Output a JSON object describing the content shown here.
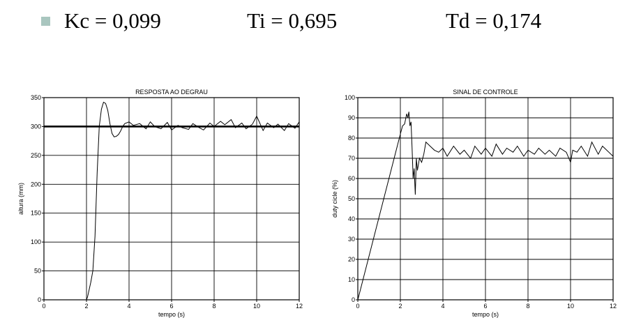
{
  "params": {
    "bullet_color": "#a9c6bf",
    "kc": "Kc = 0,099",
    "ti": "Ti = 0,695",
    "td": "Td = 0,174"
  },
  "chart_data": [
    {
      "type": "line",
      "title": "RESPOSTA AO DEGRAU",
      "xlabel": "tempo (s)",
      "ylabel": "altura (mm)",
      "xlim": [
        0,
        12
      ],
      "ylim": [
        0,
        350
      ],
      "xticks": [
        0,
        2,
        4,
        6,
        8,
        10,
        12
      ],
      "yticks": [
        0,
        50,
        100,
        150,
        200,
        250,
        300,
        350
      ],
      "grid": true,
      "reference": {
        "y": 300
      },
      "series": [
        {
          "x": [
            0,
            2.0,
            2.05,
            2.2,
            2.3,
            2.4,
            2.5,
            2.6,
            2.7,
            2.8,
            2.9,
            3.0,
            3.1,
            3.2,
            3.3,
            3.4,
            3.5,
            3.6,
            3.7,
            3.8,
            4.0,
            4.2,
            4.5,
            4.8,
            5.0,
            5.2,
            5.5,
            5.8,
            6.0,
            6.3,
            6.5,
            6.8,
            7.0,
            7.3,
            7.5,
            7.8,
            8.0,
            8.3,
            8.5,
            8.8,
            9.0,
            9.3,
            9.5,
            9.8,
            10.0,
            10.3,
            10.5,
            10.8,
            11.0,
            11.3,
            11.5,
            11.8,
            12.0
          ],
          "y": [
            0,
            0,
            5,
            30,
            50,
            110,
            220,
            300,
            330,
            342,
            340,
            328,
            305,
            288,
            282,
            283,
            286,
            292,
            300,
            305,
            308,
            302,
            305,
            296,
            308,
            300,
            296,
            307,
            294,
            302,
            298,
            295,
            305,
            298,
            294,
            306,
            300,
            309,
            303,
            312,
            298,
            306,
            296,
            304,
            318,
            293,
            306,
            298,
            304,
            293,
            305,
            297,
            308
          ]
        }
      ]
    },
    {
      "type": "line",
      "title": "SINAL DE CONTROLE",
      "xlabel": "tempo (s)",
      "ylabel": "duty cicle (%)",
      "xlim": [
        0,
        12
      ],
      "ylim": [
        0,
        100
      ],
      "xticks": [
        0,
        2,
        4,
        6,
        8,
        10,
        12
      ],
      "yticks": [
        0,
        10,
        20,
        30,
        40,
        50,
        60,
        70,
        80,
        90,
        100
      ],
      "grid": true,
      "series": [
        {
          "x": [
            0,
            2.0,
            2.1,
            2.2,
            2.3,
            2.35,
            2.4,
            2.45,
            2.5,
            2.55,
            2.6,
            2.65,
            2.7,
            2.75,
            2.8,
            2.9,
            3.0,
            3.1,
            3.2,
            3.4,
            3.6,
            3.8,
            4.0,
            4.2,
            4.5,
            4.8,
            5.0,
            5.3,
            5.5,
            5.8,
            6.0,
            6.3,
            6.5,
            6.8,
            7.0,
            7.3,
            7.5,
            7.8,
            8.0,
            8.3,
            8.5,
            8.8,
            9.0,
            9.3,
            9.5,
            9.8,
            10.0,
            10.1,
            10.3,
            10.5,
            10.8,
            11.0,
            11.3,
            11.5,
            11.8,
            12.0
          ],
          "y": [
            0,
            82,
            86,
            87,
            92,
            90,
            93,
            86,
            88,
            75,
            60,
            65,
            52,
            70,
            64,
            70,
            68,
            72,
            78,
            76,
            74,
            73,
            75,
            71,
            76,
            72,
            74,
            70,
            76,
            72,
            75,
            71,
            77,
            72,
            75,
            73,
            76,
            71,
            74,
            72,
            75,
            72,
            74,
            71,
            75,
            73,
            68,
            74,
            73,
            76,
            71,
            78,
            72,
            76,
            73,
            71
          ]
        }
      ]
    }
  ]
}
